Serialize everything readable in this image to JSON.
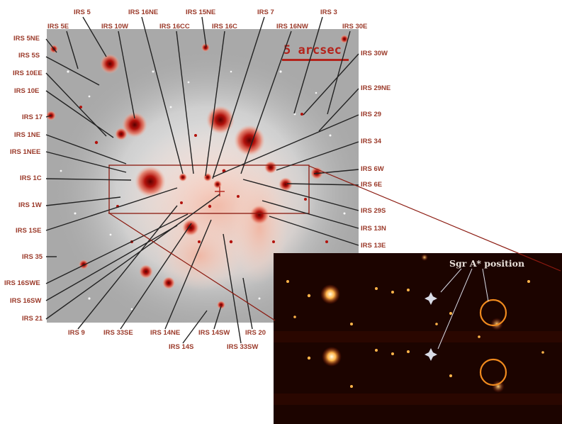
{
  "scale_label": "5 arcsec",
  "inset_annotation": "Sgr A* position",
  "colors": {
    "label": "#9b3a2a",
    "scale": "#b4231b",
    "inset_background": "#1a0300",
    "circle": "#f08a1e"
  },
  "labels": {
    "irs_5": "IRS 5",
    "irs_16ne": "IRS 16NE",
    "irs_15ne": "IRS 15NE",
    "irs_7": "IRS 7",
    "irs_3": "IRS 3",
    "irs_5e": "IRS 5E",
    "irs_10w": "IRS 10W",
    "irs_16cc": "IRS 16CC",
    "irs_16c": "IRS 16C",
    "irs_16nw": "IRS 16NW",
    "irs_30e": "IRS 30E",
    "irs_5ne": "IRS 5NE",
    "irs_5s": "IRS 5S",
    "irs_10ee": "IRS 10EE",
    "irs_10e": "IRS 10E",
    "irs_17": "IRS 17",
    "irs_1ne": "IRS 1NE",
    "irs_1nee": "IRS 1NEE",
    "irs_1c": "IRS 1C",
    "irs_1w": "IRS 1W",
    "irs_1se": "IRS 1SE",
    "irs_35": "IRS 35",
    "irs_16swe": "IRS 16SWE",
    "irs_16sw": "IRS 16SW",
    "irs_21": "IRS 21",
    "irs_30w": "IRS 30W",
    "irs_29ne": "IRS 29NE",
    "irs_29": "IRS 29",
    "irs_34": "IRS 34",
    "irs_6w": "IRS 6W",
    "irs_6e": "IRS 6E",
    "irs_29s": "IRS 29S",
    "irs_13n": "IRS 13N",
    "irs_13e": "IRS 13E",
    "irs_9": "IRS 9",
    "irs_33se": "IRS 33SE",
    "irs_14ne": "IRS 14NE",
    "irs_14sw": "IRS 14SW",
    "irs_20": "IRS 20",
    "irs_14s": "IRS 14S",
    "irs_33sw": "IRS 33SW"
  }
}
